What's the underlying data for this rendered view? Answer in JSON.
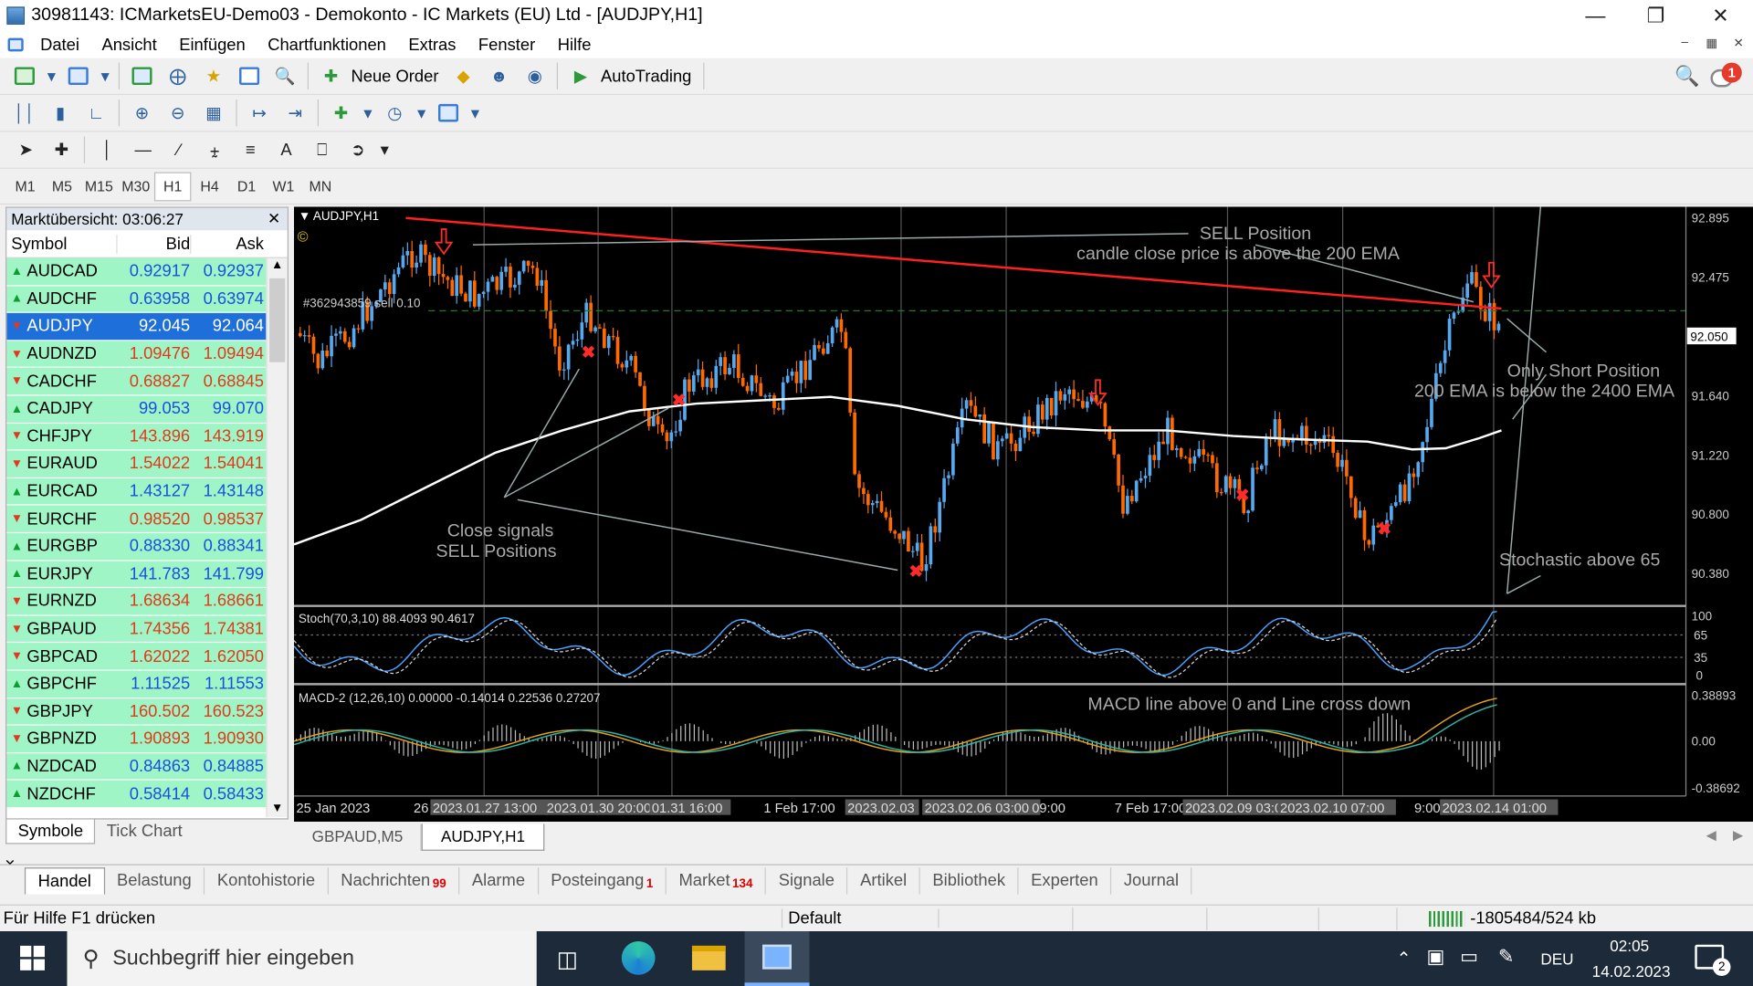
{
  "window": {
    "title": "30981143: ICMarketsEU-Demo03 - Demokonto - IC Markets (EU) Ltd - [AUDJPY,H1]"
  },
  "menu": [
    "Datei",
    "Ansicht",
    "Einfügen",
    "Chartfunktionen",
    "Extras",
    "Fenster",
    "Hilfe"
  ],
  "toolbar": {
    "new_order": "Neue Order",
    "autotrading": "AutoTrading",
    "notification_count": "1"
  },
  "timeframes": [
    "M1",
    "M5",
    "M15",
    "M30",
    "H1",
    "H4",
    "D1",
    "W1",
    "MN"
  ],
  "active_timeframe": "H1",
  "market_watch": {
    "title": "Marktübersicht: 03:06:27",
    "columns": [
      "Symbol",
      "Bid",
      "Ask"
    ],
    "rows": [
      {
        "symbol": "AUDCAD",
        "bid": "0.92917",
        "ask": "0.92937",
        "dir": "up"
      },
      {
        "symbol": "AUDCHF",
        "bid": "0.63958",
        "ask": "0.63974",
        "dir": "up"
      },
      {
        "symbol": "AUDJPY",
        "bid": "92.045",
        "ask": "92.064",
        "dir": "dn",
        "selected": true
      },
      {
        "symbol": "AUDNZD",
        "bid": "1.09476",
        "ask": "1.09494",
        "dir": "dn"
      },
      {
        "symbol": "CADCHF",
        "bid": "0.68827",
        "ask": "0.68845",
        "dir": "dn"
      },
      {
        "symbol": "CADJPY",
        "bid": "99.053",
        "ask": "99.070",
        "dir": "up"
      },
      {
        "symbol": "CHFJPY",
        "bid": "143.896",
        "ask": "143.919",
        "dir": "dn"
      },
      {
        "symbol": "EURAUD",
        "bid": "1.54022",
        "ask": "1.54041",
        "dir": "dn"
      },
      {
        "symbol": "EURCAD",
        "bid": "1.43127",
        "ask": "1.43148",
        "dir": "up"
      },
      {
        "symbol": "EURCHF",
        "bid": "0.98520",
        "ask": "0.98537",
        "dir": "dn"
      },
      {
        "symbol": "EURGBP",
        "bid": "0.88330",
        "ask": "0.88341",
        "dir": "up"
      },
      {
        "symbol": "EURJPY",
        "bid": "141.783",
        "ask": "141.799",
        "dir": "up"
      },
      {
        "symbol": "EURNZD",
        "bid": "1.68634",
        "ask": "1.68661",
        "dir": "dn"
      },
      {
        "symbol": "GBPAUD",
        "bid": "1.74356",
        "ask": "1.74381",
        "dir": "dn"
      },
      {
        "symbol": "GBPCAD",
        "bid": "1.62022",
        "ask": "1.62050",
        "dir": "dn"
      },
      {
        "symbol": "GBPCHF",
        "bid": "1.11525",
        "ask": "1.11553",
        "dir": "up"
      },
      {
        "symbol": "GBPJPY",
        "bid": "160.502",
        "ask": "160.523",
        "dir": "dn"
      },
      {
        "symbol": "GBPNZD",
        "bid": "1.90893",
        "ask": "1.90930",
        "dir": "dn"
      },
      {
        "symbol": "NZDCAD",
        "bid": "0.84863",
        "ask": "0.84885",
        "dir": "up"
      },
      {
        "symbol": "NZDCHF",
        "bid": "0.58414",
        "ask": "0.58433",
        "dir": "up"
      }
    ],
    "tabs": [
      "Symbole",
      "Tick Chart"
    ]
  },
  "chart": {
    "symbol_label": "AUDJPY,H1",
    "order_label": "#362943859 sell 0.10",
    "current_price": "92.050",
    "price_ticks": [
      "92.895",
      "92.475",
      "91.640",
      "91.220",
      "90.800",
      "90.380"
    ],
    "stoch_label": "Stoch(70,3,10) 88.4093 90.4617",
    "stoch_ticks": [
      "100",
      "65",
      "35",
      "0"
    ],
    "macd_label": "MACD-2 (12,26,10) 0.00000 -0.14014 0.22536 0.27207",
    "macd_ticks": [
      "0.38893",
      "0.00",
      "-0.38692"
    ],
    "time_labels": [
      "25 Jan 2023",
      "26",
      "2023.01.27 13:00",
      "2023.01.30 20:00",
      "01.31 16:00",
      "1 Feb 17:00",
      "2023.02.03",
      "2023.02.06 03:00",
      "09:00",
      "7 Feb 17:00",
      "2023.02.09 03:0",
      "2023.02.10 07:00",
      "9:00",
      "2023.02.14 01:00"
    ],
    "annotations": {
      "sell_1": "SELL Position",
      "sell_2": "candle close price is above the 200 EMA",
      "short_1": "Only Short Position",
      "short_2": "200 EMA is below the 2400 EMA",
      "close_1": "Close signals",
      "close_2": "SELL Positions",
      "stoch": "Stochastic above 65",
      "macd": "MACD line above 0  and Line cross down"
    }
  },
  "chart_tabs": [
    "GBPAUD,M5",
    "AUDJPY,H1"
  ],
  "terminal_tabs": [
    {
      "label": "Handel"
    },
    {
      "label": "Belastung"
    },
    {
      "label": "Kontohistorie"
    },
    {
      "label": "Nachrichten",
      "badge": "99"
    },
    {
      "label": "Alarme"
    },
    {
      "label": "Posteingang",
      "badge": "1"
    },
    {
      "label": "Market",
      "badge": "134"
    },
    {
      "label": "Signale"
    },
    {
      "label": "Artikel"
    },
    {
      "label": "Bibliothek"
    },
    {
      "label": "Experten"
    },
    {
      "label": "Journal"
    }
  ],
  "statusbar": {
    "help": "Für Hilfe F1 drücken",
    "profile": "Default",
    "traffic": "-1805484/524 kb"
  },
  "taskbar": {
    "search_placeholder": "Suchbegriff hier eingeben",
    "lang": "DEU",
    "time": "02:05",
    "date": "14.02.2023",
    "notif": "2"
  }
}
